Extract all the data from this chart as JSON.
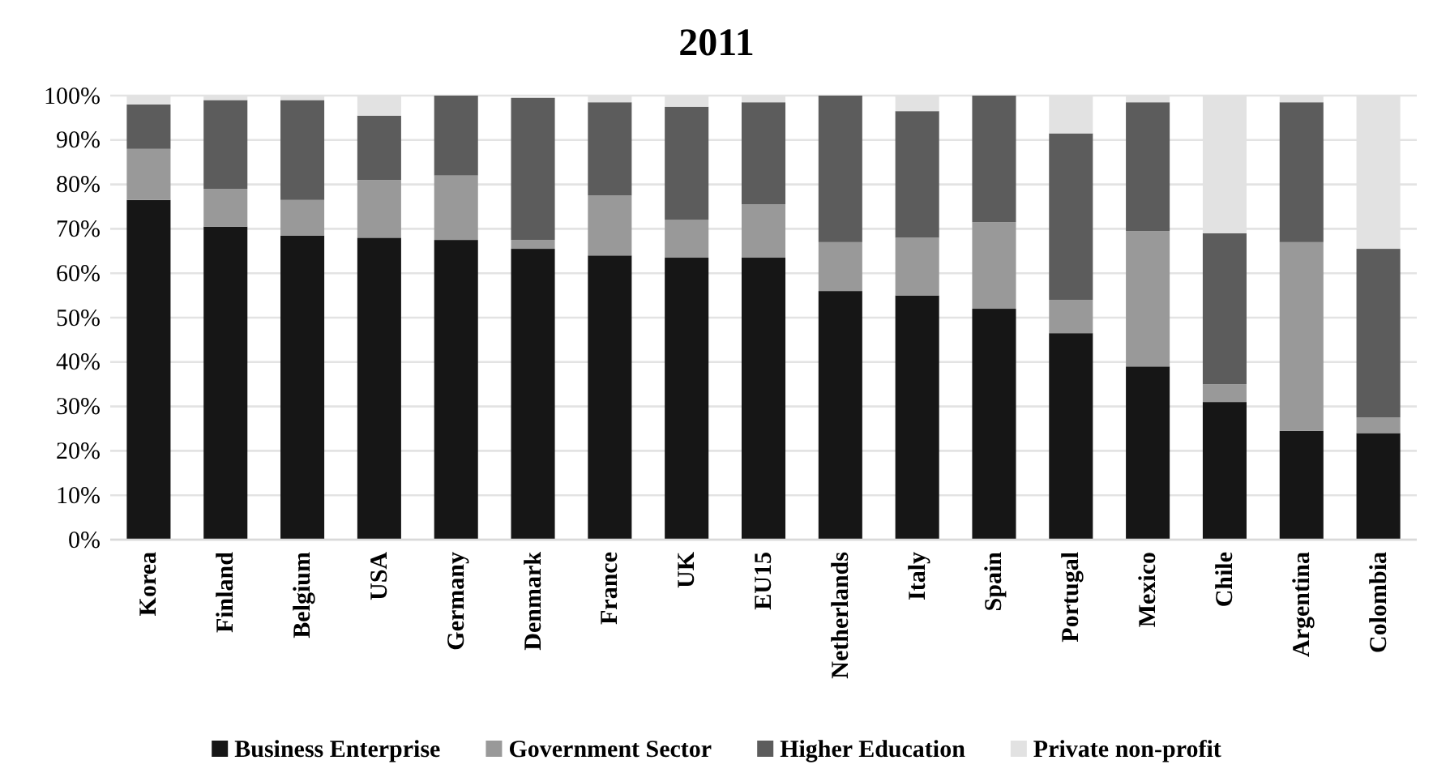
{
  "chart_data": {
    "type": "bar",
    "title": "2011",
    "stacked": true,
    "categories": [
      "Korea",
      "Finland",
      "Belgium",
      "USA",
      "Germany",
      "Denmark",
      "France",
      "UK",
      "EU15",
      "Netherlands",
      "Italy",
      "Spain",
      "Portugal",
      "Mexico",
      "Chile",
      "Argentina",
      "Colombia"
    ],
    "series": [
      {
        "name": "Business Enterprise",
        "color": "#161616",
        "values": [
          76.5,
          70.5,
          68.5,
          68,
          67.5,
          65.5,
          64,
          63.5,
          63.5,
          56,
          55,
          52,
          46.5,
          39,
          31,
          24.5,
          24
        ]
      },
      {
        "name": "Government Sector",
        "color": "#999999",
        "values": [
          11.5,
          8.5,
          8,
          13,
          14.5,
          2,
          13.5,
          8.5,
          12,
          11,
          13,
          19.5,
          7.5,
          30.5,
          4,
          42.5,
          3.5
        ]
      },
      {
        "name": "Higher Education",
        "color": "#5c5c5c",
        "values": [
          10,
          20,
          22.5,
          14.5,
          18,
          32,
          21,
          25.5,
          23,
          33,
          28.5,
          28.5,
          37.5,
          29,
          34,
          31.5,
          38
        ]
      },
      {
        "name": "Private non-profit",
        "color": "#e2e2e2",
        "values": [
          2,
          1,
          1,
          4.5,
          0,
          null,
          1.5,
          2.5,
          1.5,
          0,
          3.5,
          0,
          8.5,
          1.5,
          31,
          1.5,
          34.5
        ]
      }
    ],
    "ylim": [
      0,
      100
    ],
    "yticks": [
      {
        "value": 0,
        "label": "0%"
      },
      {
        "value": 10,
        "label": "10%"
      },
      {
        "value": 20,
        "label": "20%"
      },
      {
        "value": 30,
        "label": "30%"
      },
      {
        "value": 40,
        "label": "40%"
      },
      {
        "value": 50,
        "label": "50%"
      },
      {
        "value": 60,
        "label": "60%"
      },
      {
        "value": 70,
        "label": "70%"
      },
      {
        "value": 80,
        "label": "80%"
      },
      {
        "value": 90,
        "label": "90%"
      },
      {
        "value": 100,
        "label": "100%"
      }
    ],
    "grid": "y",
    "legend": "bottom"
  }
}
